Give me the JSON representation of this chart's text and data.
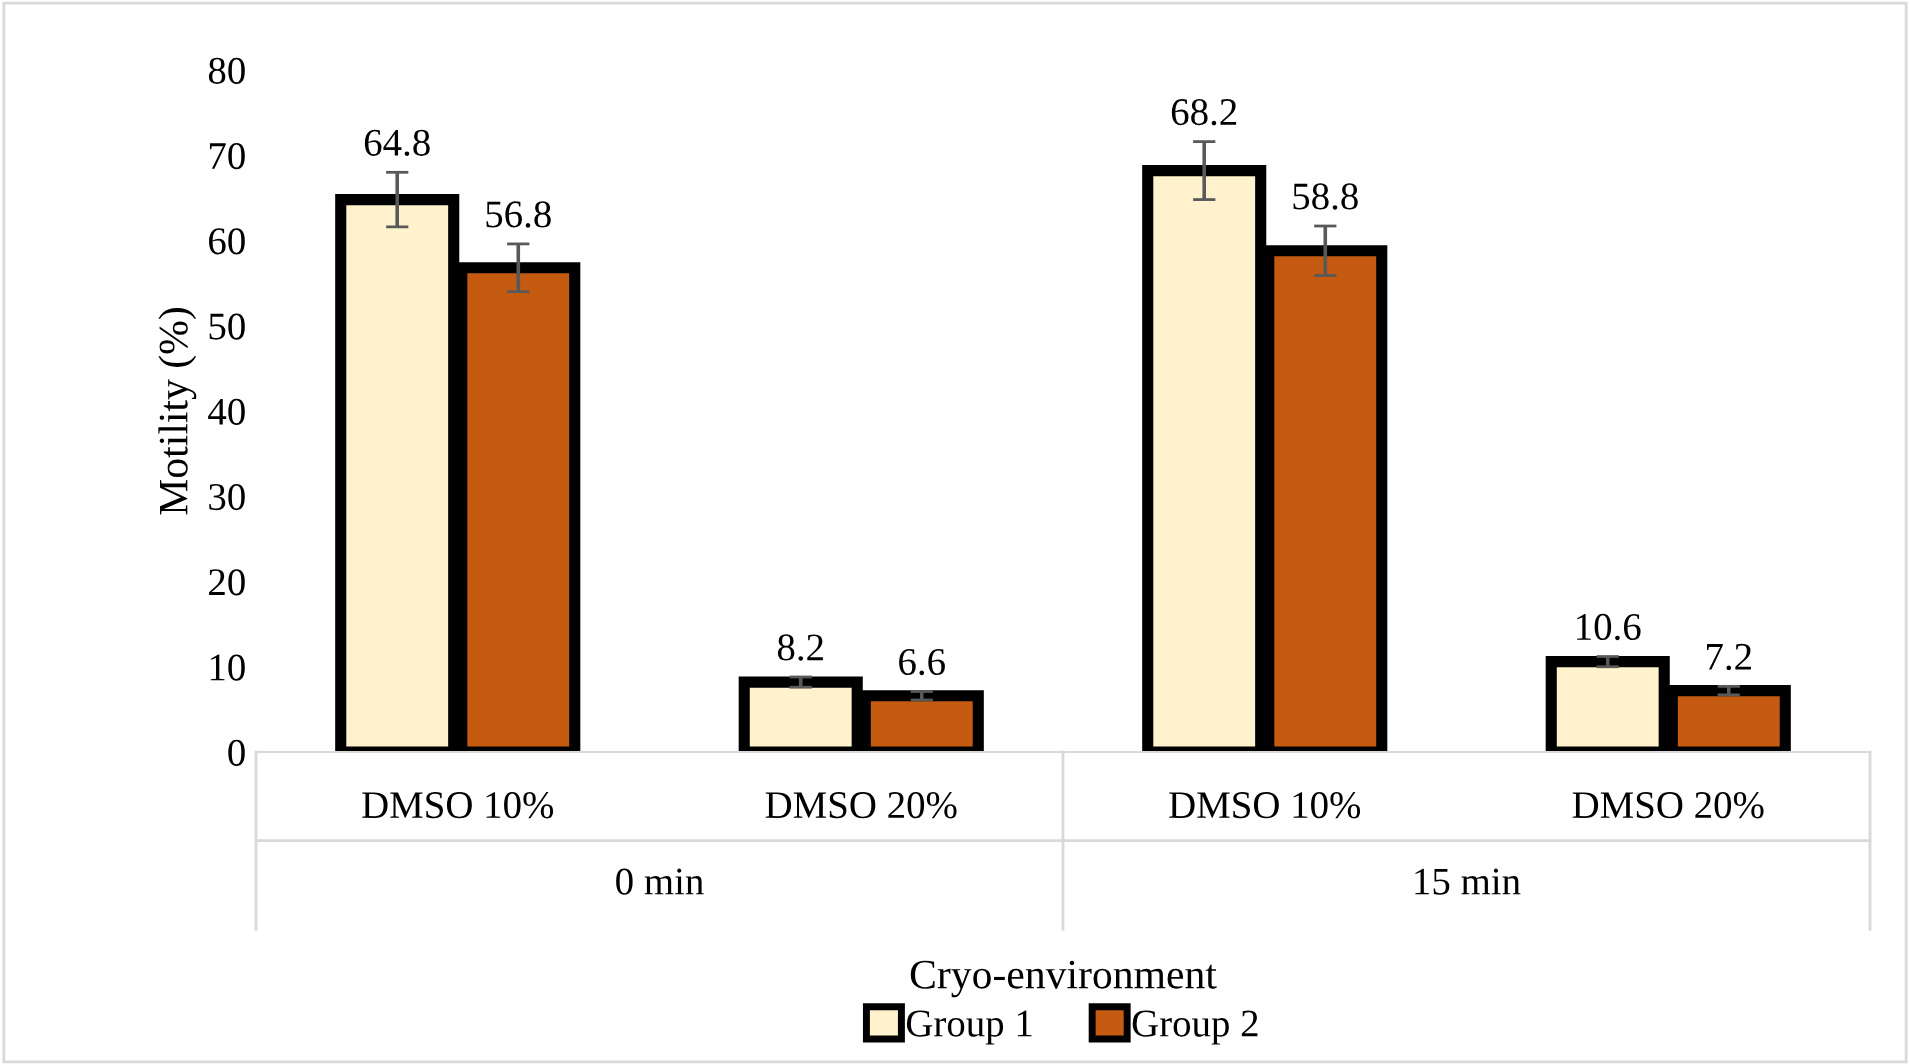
{
  "chart_data": {
    "type": "bar",
    "xlabel": "Cryo-environment",
    "ylabel": "Motility (%)",
    "categories": [
      "DMSO 10%",
      "DMSO 20%",
      "DMSO 10%",
      "DMSO 20%"
    ],
    "annotations": [
      "0 min",
      "15 min"
    ],
    "series": [
      {
        "name": "Group 1",
        "color": "#fff2cc",
        "values": [
          64.8,
          8.2,
          68.2,
          10.6
        ],
        "errors": [
          3.2,
          0.6,
          3.4,
          0.6
        ]
      },
      {
        "name": "Group 2",
        "color": "#c55a11",
        "values": [
          56.8,
          6.6,
          58.8,
          7.2
        ],
        "errors": [
          2.8,
          0.5,
          2.9,
          0.5
        ]
      }
    ],
    "ylim": [
      0,
      80
    ],
    "yticks": [
      0,
      10,
      20,
      30,
      40,
      50,
      60,
      70,
      80
    ],
    "grid": false,
    "legend": "bottom",
    "data_labels": true
  }
}
